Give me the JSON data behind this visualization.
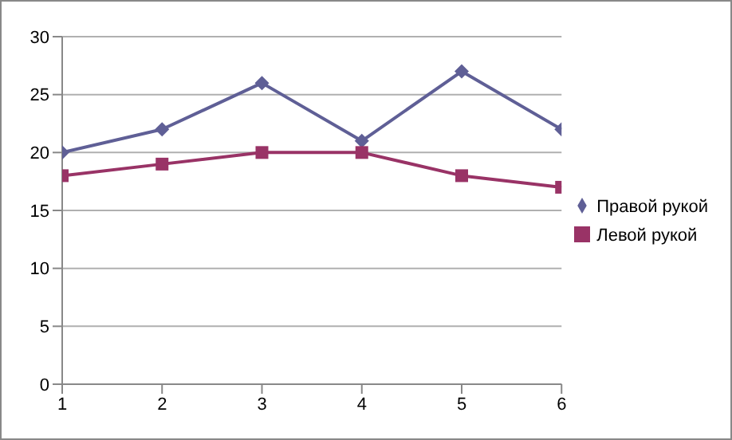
{
  "chart_data": {
    "type": "line",
    "x": [
      1,
      2,
      3,
      4,
      5,
      6
    ],
    "xlim": [
      1,
      6
    ],
    "xticks": [
      1,
      2,
      3,
      4,
      5,
      6
    ],
    "ylim": [
      0,
      30
    ],
    "yticks": [
      0,
      5,
      10,
      15,
      20,
      25,
      30
    ],
    "grid": "y",
    "legend": "right",
    "line_style": "solid",
    "series": [
      {
        "name": "Правой рукой",
        "color": "#5f5f96",
        "marker": "diamond",
        "values": [
          20,
          22,
          26,
          21,
          27,
          22
        ]
      },
      {
        "name": "Левой рукой",
        "color": "#993366",
        "marker": "square",
        "values": [
          18,
          19,
          20,
          20,
          18,
          17
        ]
      }
    ]
  }
}
